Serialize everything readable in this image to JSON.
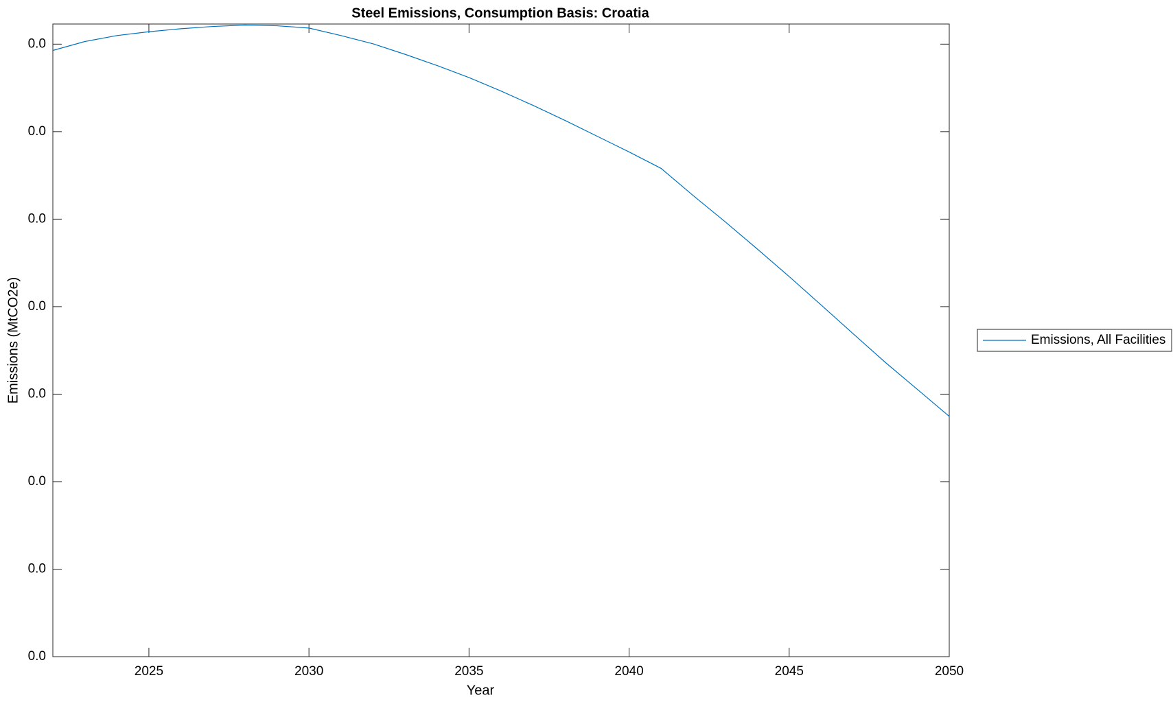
{
  "chart_data": {
    "type": "line",
    "title": "Steel Emissions, Consumption Basis: Croatia",
    "xlabel": "Year",
    "ylabel": "Emissions (MtCO2e)",
    "x": [
      2022,
      2023,
      2024,
      2025,
      2026,
      2027,
      2028,
      2029,
      2030,
      2031,
      2032,
      2033,
      2034,
      2035,
      2036,
      2037,
      2038,
      2039,
      2040,
      2041,
      2042,
      2043,
      2044,
      2045,
      2046,
      2047,
      2048,
      2049,
      2050
    ],
    "series": [
      {
        "name": "Emissions, All Facilities",
        "color": "#0072bd",
        "values": [
          0.03464,
          0.03515,
          0.03549,
          0.03571,
          0.03588,
          0.03601,
          0.03609,
          0.03605,
          0.03592,
          0.03549,
          0.03502,
          0.03442,
          0.03378,
          0.03309,
          0.03232,
          0.0315,
          0.03064,
          0.02974,
          0.02884,
          0.0279,
          0.02635,
          0.02485,
          0.0233,
          0.02172,
          0.02009,
          0.01845,
          0.01682,
          0.01528,
          0.01373
        ]
      }
    ],
    "xlim": [
      2022,
      2050
    ],
    "xticks": [
      2025,
      2030,
      2035,
      2040,
      2045,
      2050
    ],
    "ylim": [
      0,
      0.03615
    ],
    "yticks": [
      {
        "value": 0,
        "label": "0.0"
      },
      {
        "value": 0.005,
        "label": "0.0"
      },
      {
        "value": 0.01,
        "label": "0.0"
      },
      {
        "value": 0.015,
        "label": "0.0"
      },
      {
        "value": 0.02,
        "label": "0.0"
      },
      {
        "value": 0.025,
        "label": "0.0"
      },
      {
        "value": 0.03,
        "label": "0.0"
      },
      {
        "value": 0.035,
        "label": "0.0"
      }
    ],
    "grid": false,
    "legend": "outside-right"
  }
}
